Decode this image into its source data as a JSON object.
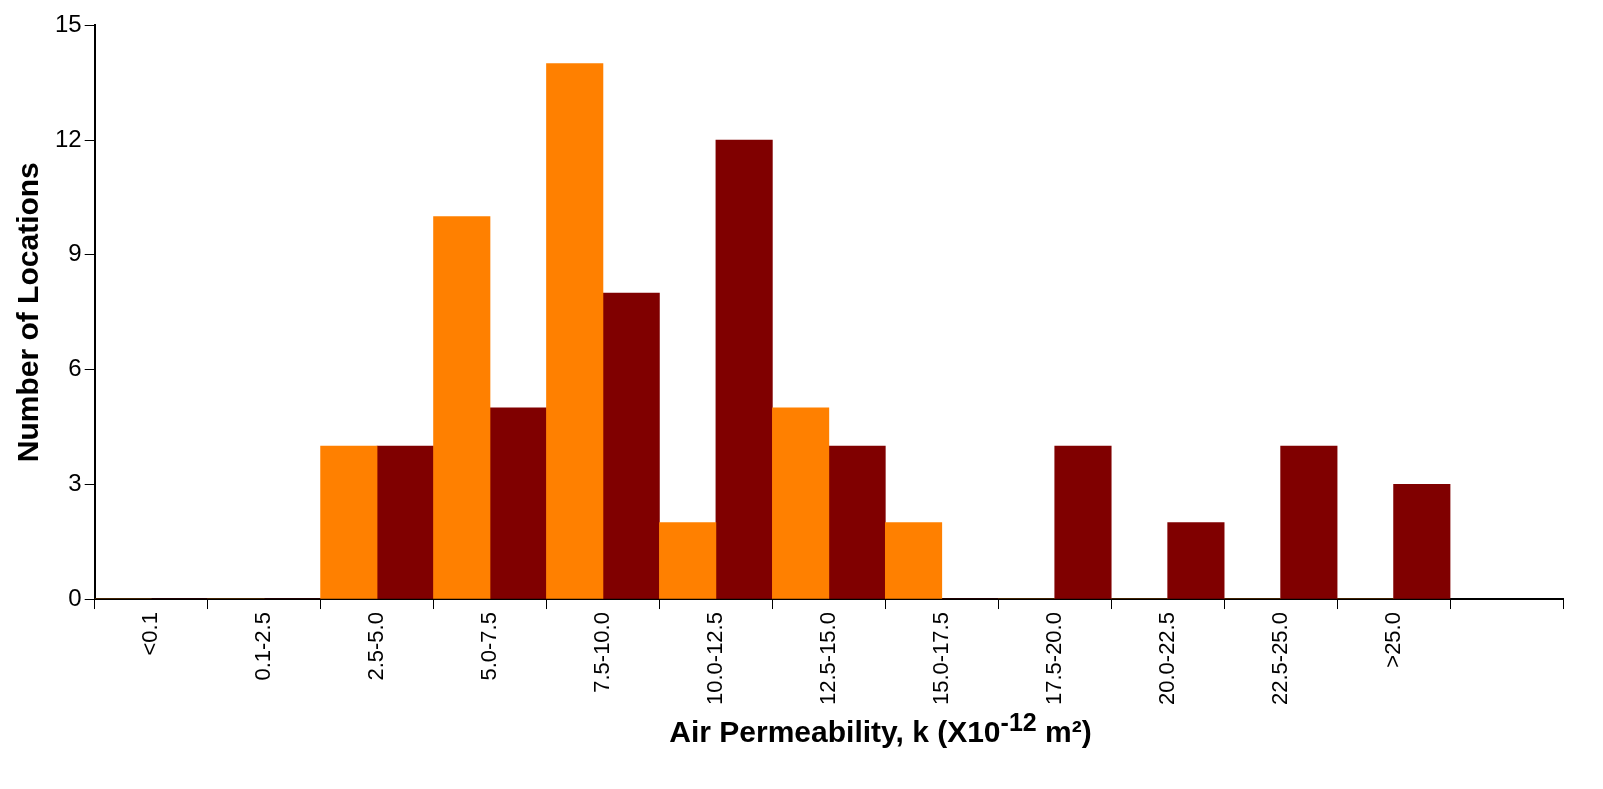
{
  "chart_data": {
    "type": "bar",
    "xlabel": "Air Permeability, k (X10$^{-12}$ m²)",
    "ylabel": "Number of Locations",
    "categories": [
      "<0.1",
      "0.1-2.5",
      "2.5-5.0",
      "5.0-7.5",
      "7.5-10.0",
      "10.0-12.5",
      "12.5-15.0",
      "15.0-17.5",
      "17.5-20.0",
      "20.0-22.5",
      "22.5-25.0",
      ">25.0",
      null
    ],
    "series": [
      {
        "color": "#ff8000",
        "values": [
          0,
          0,
          4,
          10,
          14,
          2,
          5,
          2,
          0,
          0,
          0,
          0,
          null
        ]
      },
      {
        "color": "#800000",
        "values": [
          0,
          0,
          4,
          5,
          8,
          12,
          4,
          0,
          4,
          2,
          4,
          3,
          null
        ]
      }
    ],
    "ylim": [
      0,
      15
    ],
    "yticks": [
      0,
      3,
      6,
      9,
      12,
      15
    ],
    "grid": false,
    "legend": false
  }
}
